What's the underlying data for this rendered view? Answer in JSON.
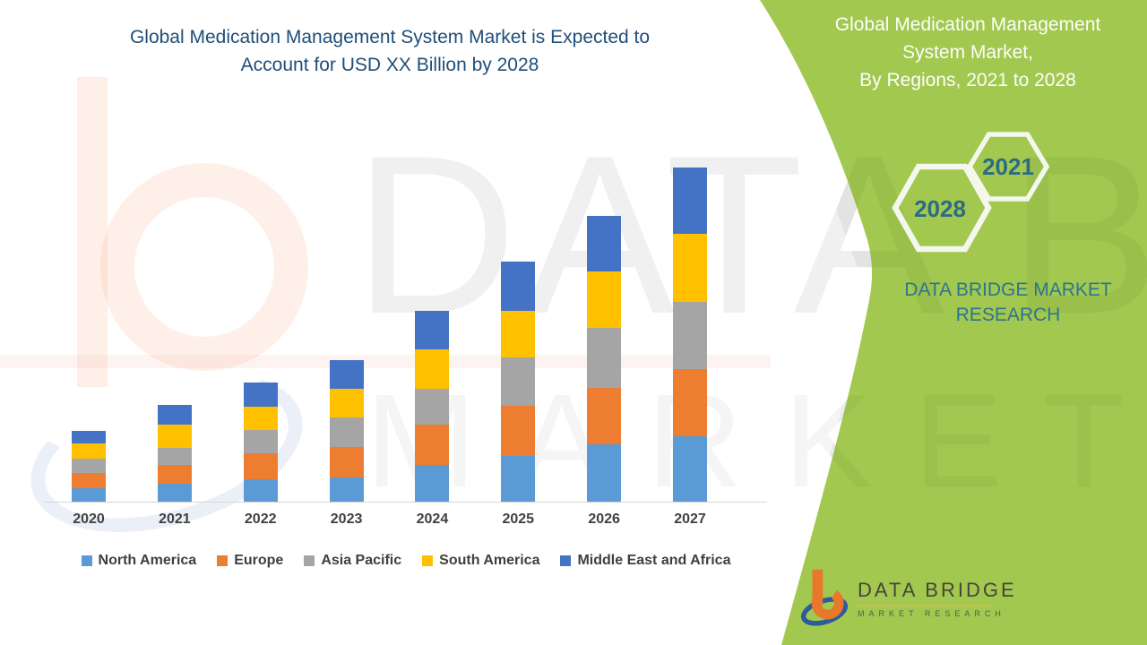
{
  "header": {
    "title_line1": "Global Medication Management System Market is Expected to",
    "title_line2": "Account for USD XX Billion by 2028"
  },
  "side_panel": {
    "background_color": "#A2C84F",
    "accent_text_color": "#2C6F87",
    "title_lines": [
      "Global Medication Management",
      "System Market,",
      "By Regions, 2021 to 2028"
    ],
    "hexagons": [
      {
        "label": "2021"
      },
      {
        "label": "2028"
      }
    ],
    "brand_line1": "DATA BRIDGE MARKET",
    "brand_line2": "RESEARCH"
  },
  "watermark": {
    "line1": "DATA BRIDGE",
    "line2": "MARKET RESEARCH"
  },
  "logo": {
    "name": "DATA BRIDGE",
    "subtitle": "MARKET RESEARCH",
    "orange": "#E8782B",
    "blue": "#2E5A9E"
  },
  "chart_data": {
    "type": "bar",
    "stacked": true,
    "title": "Global Medication Management System Market is Expected to Account for USD XX Billion by 2028",
    "xlabel": "",
    "ylabel": "",
    "value_axis_visible": false,
    "units": "relative size (USD XX Billion, values not labeled)",
    "legend_position": "bottom",
    "grid": false,
    "categories": [
      "2020",
      "2021",
      "2022",
      "2023",
      "2024",
      "2025",
      "2026",
      "2027"
    ],
    "series": [
      {
        "name": "North America",
        "color": "#5B9BD5",
        "values": [
          15,
          20,
          25,
          27,
          41,
          51,
          64,
          73
        ]
      },
      {
        "name": "Europe",
        "color": "#ED7D31",
        "values": [
          17,
          21,
          29,
          34,
          45,
          56,
          63,
          75
        ]
      },
      {
        "name": "Asia Pacific",
        "color": "#A5A5A5",
        "values": [
          16,
          19,
          26,
          33,
          40,
          54,
          67,
          75
        ]
      },
      {
        "name": "South America",
        "color": "#FFC000",
        "values": [
          17,
          26,
          26,
          32,
          44,
          52,
          63,
          76
        ]
      },
      {
        "name": "Middle East and Africa",
        "color": "#4472C4",
        "values": [
          14,
          22,
          27,
          32,
          43,
          55,
          62,
          74
        ]
      }
    ],
    "totals": [
      79,
      108,
      133,
      158,
      213,
      268,
      319,
      373
    ]
  }
}
